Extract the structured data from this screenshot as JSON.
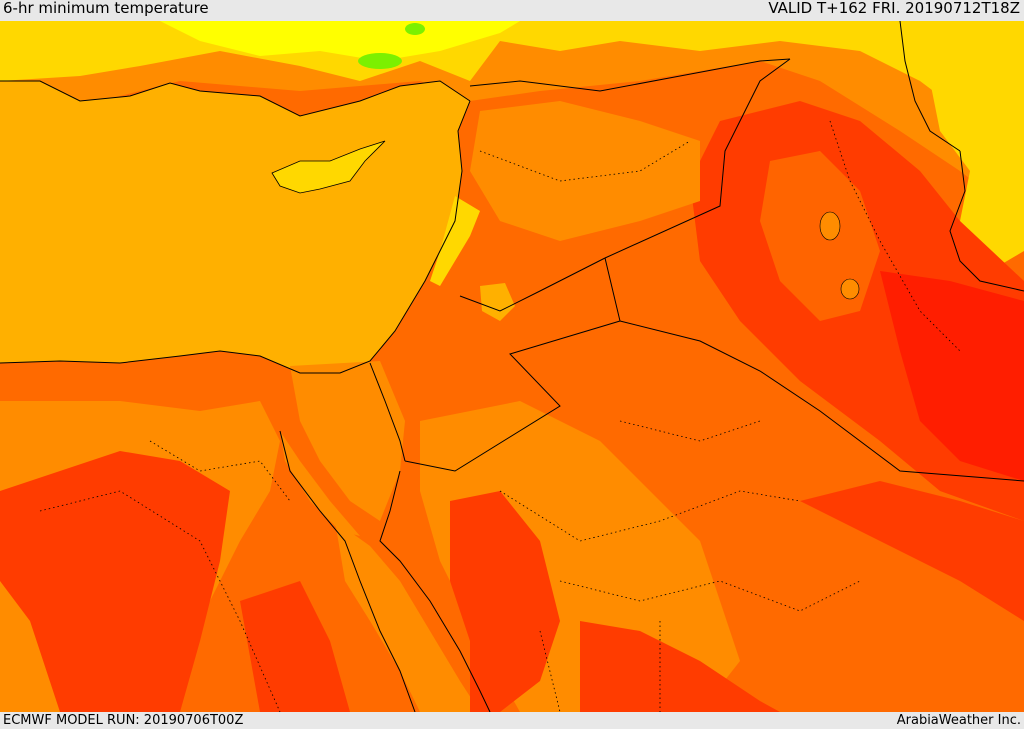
{
  "header": {
    "title": "6-hr minimum temperature",
    "valid": "VALID T+162 FRI. 20190712T18Z"
  },
  "footer": {
    "model_run": "ECMWF MODEL RUN: 20190706T00Z",
    "credit": "ArabiaWeather Inc."
  },
  "palette": {
    "sea": "#ffb000",
    "warm_yellow": "#ffd800",
    "bright_yellow": "#ffff00",
    "orange": "#ff8c00",
    "dark_orange": "#ff6400",
    "red_orange": "#ff3c00",
    "red": "#ff1e00",
    "cool_green": "#7cf000",
    "border_line": "#000000"
  }
}
